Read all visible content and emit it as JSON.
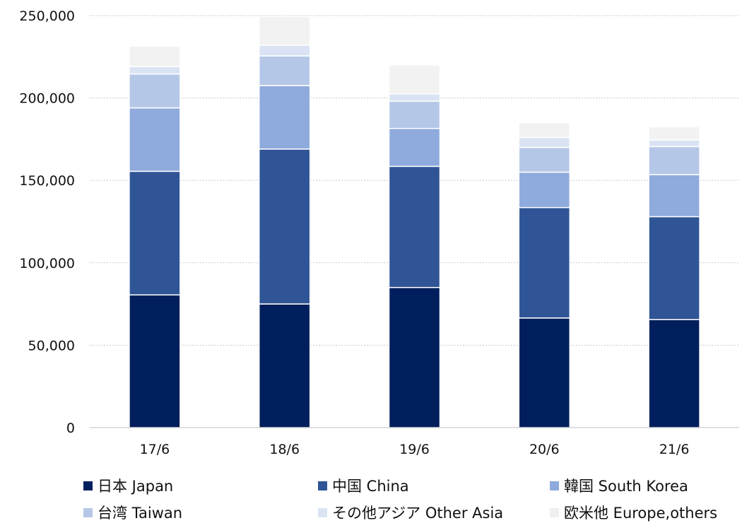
{
  "chart_data": {
    "type": "bar",
    "stacked": true,
    "title": "",
    "xlabel": "",
    "ylabel": "",
    "categories": [
      "17/6",
      "18/6",
      "19/6",
      "20/6",
      "21/6"
    ],
    "ylim": [
      0,
      250000
    ],
    "yticks": [
      0,
      50000,
      100000,
      150000,
      200000,
      250000
    ],
    "ytick_labels": [
      "0",
      "50,000",
      "100,000",
      "150,000",
      "200,000",
      "250,000"
    ],
    "grid": true,
    "legend_position": "bottom",
    "series": [
      {
        "name": "日本 Japan",
        "color": "#001f5c",
        "values": [
          80500,
          75000,
          85000,
          66500,
          65500
        ]
      },
      {
        "name": "中国 China",
        "color": "#2f5597",
        "values": [
          75000,
          94000,
          73500,
          67000,
          62500
        ]
      },
      {
        "name": "韓国 South Korea",
        "color": "#8faadc",
        "values": [
          38500,
          38500,
          23000,
          21500,
          25500
        ]
      },
      {
        "name": "台湾 Taiwan",
        "color": "#b4c7e7",
        "values": [
          20500,
          18000,
          16500,
          15000,
          17000
        ]
      },
      {
        "name": "その他アジア Other Asia",
        "color": "#dae3f3",
        "values": [
          4500,
          6500,
          4500,
          6000,
          4000
        ]
      },
      {
        "name": "欧米他 Europe,others",
        "color": "#f2f2f2",
        "values": [
          12500,
          17500,
          17500,
          9000,
          8000
        ]
      }
    ]
  }
}
